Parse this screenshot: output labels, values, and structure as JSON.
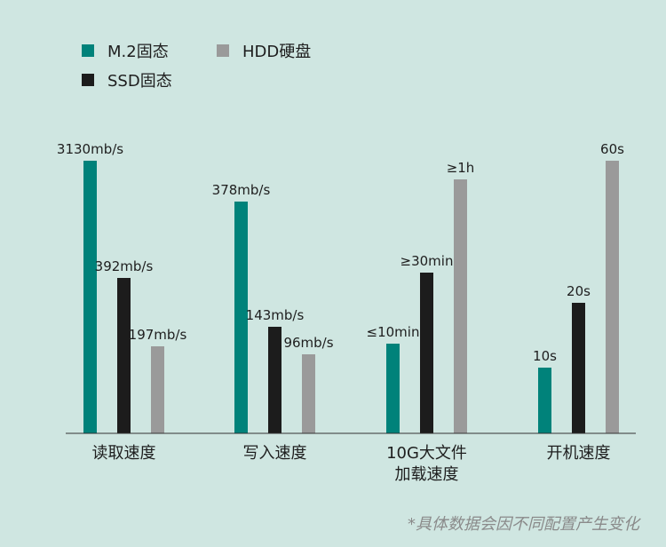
{
  "legend": [
    {
      "name": "M.2固态",
      "color": "#00827a"
    },
    {
      "name": "SSD固态",
      "color": "#1c1c1c"
    },
    {
      "name": "HDD硬盘",
      "color": "#9a9a9a"
    }
  ],
  "footnote": "*具体数据会因不同配置产生变化",
  "chart_data": {
    "type": "bar",
    "categories": [
      [
        "读取速度"
      ],
      [
        "写入速度"
      ],
      [
        "10G大文件",
        "加载速度"
      ],
      [
        "开机速度"
      ]
    ],
    "series": [
      {
        "name": "M.2固态",
        "color": "#00827a",
        "values": [
          3130,
          378,
          10,
          10
        ],
        "labels": [
          "3130mb/s",
          "378mb/s",
          "≤10min",
          "10s"
        ]
      },
      {
        "name": "SSD固态",
        "color": "#1c1c1c",
        "values": [
          392,
          143,
          30,
          20
        ],
        "labels": [
          "392mb/s",
          "143mb/s",
          "≥30min",
          "20s"
        ]
      },
      {
        "name": "HDD硬盘",
        "color": "#9a9a9a",
        "values": [
          197,
          96,
          60,
          60
        ],
        "labels": [
          "197mb/s",
          "96mb/s",
          "≥1h",
          "60s"
        ]
      }
    ],
    "bar_fraction": [
      [
        1.0,
        0.57,
        0.32
      ],
      [
        0.85,
        0.39,
        0.29
      ],
      [
        0.33,
        0.59,
        0.93
      ],
      [
        0.24,
        0.48,
        1.0
      ]
    ],
    "grid": false,
    "yaxis_visible": false
  }
}
